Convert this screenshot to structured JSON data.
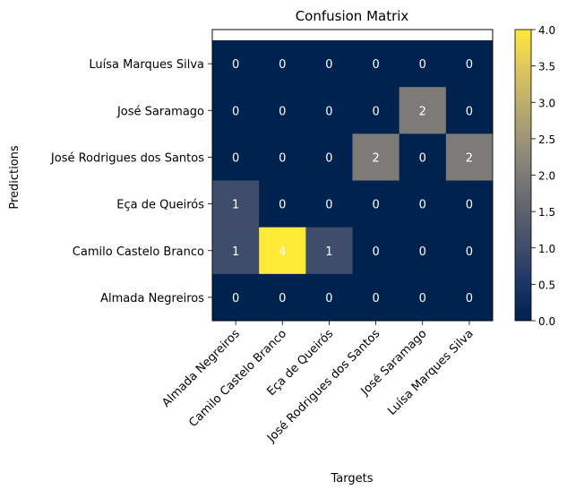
{
  "chart_data": {
    "type": "heatmap",
    "title": "Confusion Matrix",
    "xlabel": "Targets",
    "ylabel": "Predictions",
    "x_categories": [
      "Almada Negreiros",
      "Camilo Castelo Branco",
      "Eça de Queirós",
      "José Rodrigues dos Santos",
      "José Saramago",
      "Luísa Marques Silva"
    ],
    "y_categories": [
      "Luísa Marques Silva",
      "José Saramago",
      "José Rodrigues dos Santos",
      "Eça de Queirós",
      "Camilo Castelo Branco",
      "Almada Negreiros"
    ],
    "values": [
      [
        0,
        0,
        0,
        0,
        0,
        0
      ],
      [
        0,
        0,
        0,
        0,
        2,
        0
      ],
      [
        0,
        0,
        0,
        2,
        0,
        2
      ],
      [
        1,
        0,
        0,
        0,
        0,
        0
      ],
      [
        1,
        4,
        1,
        0,
        0,
        0
      ],
      [
        0,
        0,
        0,
        0,
        0,
        0
      ]
    ],
    "colormap": "cividis",
    "colorbar": {
      "range": [
        0,
        4
      ],
      "ticks": [
        "0.0",
        "0.5",
        "1.0",
        "1.5",
        "2.0",
        "2.5",
        "3.0",
        "3.5",
        "4.0"
      ]
    },
    "cell_text_color": "#ffffff"
  }
}
